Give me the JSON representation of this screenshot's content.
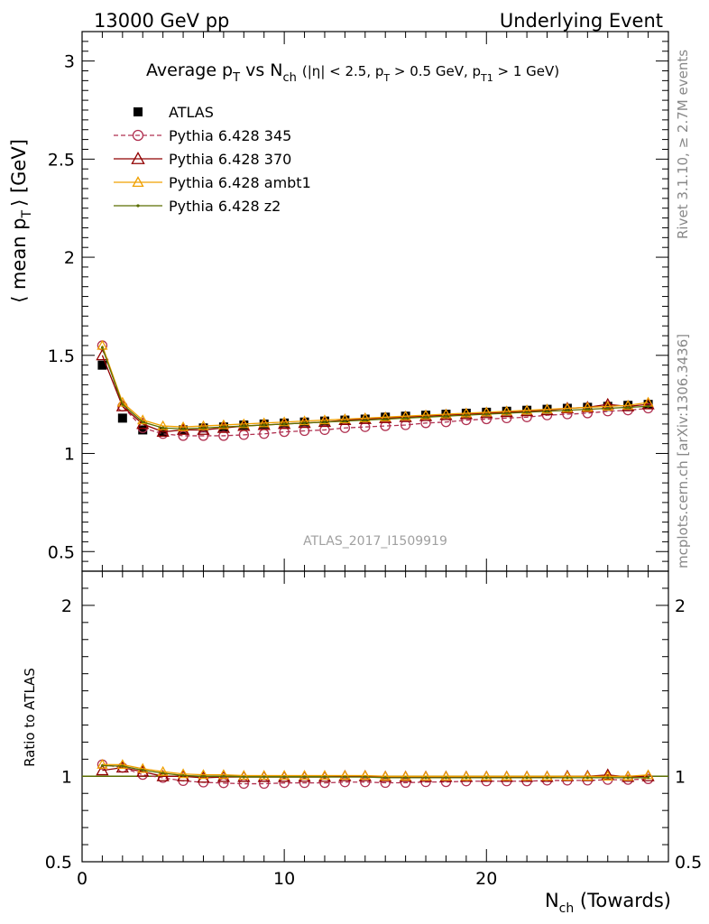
{
  "header": {
    "left": "13000 GeV pp",
    "right": "Underlying Event"
  },
  "side_labels": {
    "rivet": "Rivet 3.1.10, ≥ 2.7M events",
    "mcplots": "mcplots.cern.ch [arXiv:1306.3436]"
  },
  "colors": {
    "data": "#000000",
    "p345": "#b03050",
    "p370": "#900000",
    "ambt1": "#f0a000",
    "z2": "#5a6e00",
    "watermark": "#a0a0a0"
  },
  "chart_data": {
    "type": "scatter",
    "title_parts": {
      "main": "Average p",
      "sub1": "T",
      "mid": " vs N",
      "sub2": "ch",
      "cond": "(|η| < 2.5, p",
      "sub3": "T",
      "cond2": " > 0.5 GeV, p",
      "sub4": "T1",
      "cond3": " > 1 GeV)"
    },
    "ylabel_parts": {
      "pre": "⟨ mean p",
      "sub": "T",
      "post": "⟩ [GeV]"
    },
    "xlabel_parts": {
      "pre": "N",
      "sub": "ch",
      "post": " (Towards)"
    },
    "ratio_ylabel": "Ratio to ATLAS",
    "watermark": "ATLAS_2017_I1509919",
    "xlim": [
      0,
      29
    ],
    "ylim": [
      0.4,
      3.15
    ],
    "ratio_ylim": [
      0.5,
      2.2
    ],
    "x_ticks": [
      "0",
      "10",
      "20"
    ],
    "y_ticks": [
      "0.5",
      "1",
      "1.5",
      "2",
      "2.5",
      "3"
    ],
    "ratio_ticks": [
      "0.5",
      "1",
      "2"
    ],
    "x": [
      1,
      2,
      3,
      4,
      5,
      6,
      7,
      8,
      9,
      10,
      11,
      12,
      13,
      14,
      15,
      16,
      17,
      18,
      19,
      20,
      21,
      22,
      23,
      24,
      25,
      26,
      27,
      28
    ],
    "legend": [
      {
        "key": "data",
        "label": "ATLAS"
      },
      {
        "key": "p345",
        "label": "Pythia 6.428 345"
      },
      {
        "key": "p370",
        "label": "Pythia 6.428 370"
      },
      {
        "key": "ambt1",
        "label": "Pythia 6.428 ambt1"
      },
      {
        "key": "z2",
        "label": "Pythia 6.428 z2"
      }
    ],
    "series": [
      {
        "key": "data",
        "name": "ATLAS",
        "values": [
          1.45,
          1.18,
          1.12,
          1.11,
          1.12,
          1.13,
          1.135,
          1.145,
          1.15,
          1.155,
          1.16,
          1.165,
          1.17,
          1.175,
          1.185,
          1.19,
          1.195,
          1.2,
          1.205,
          1.21,
          1.215,
          1.22,
          1.225,
          1.23,
          1.235,
          1.24,
          1.245,
          1.25
        ]
      },
      {
        "key": "p345",
        "name": "Pythia 6.428 345",
        "values": [
          1.55,
          1.24,
          1.13,
          1.1,
          1.09,
          1.09,
          1.09,
          1.095,
          1.1,
          1.11,
          1.115,
          1.12,
          1.13,
          1.135,
          1.14,
          1.145,
          1.155,
          1.16,
          1.17,
          1.175,
          1.18,
          1.185,
          1.195,
          1.2,
          1.205,
          1.215,
          1.22,
          1.23
        ]
      },
      {
        "key": "p370",
        "name": "Pythia 6.428 370",
        "values": [
          1.5,
          1.24,
          1.15,
          1.11,
          1.12,
          1.12,
          1.13,
          1.14,
          1.145,
          1.15,
          1.155,
          1.16,
          1.17,
          1.175,
          1.18,
          1.185,
          1.19,
          1.195,
          1.2,
          1.205,
          1.21,
          1.215,
          1.22,
          1.23,
          1.235,
          1.25,
          1.24,
          1.25
        ]
      },
      {
        "key": "ambt1",
        "name": "Pythia 6.428 ambt1",
        "values": [
          1.55,
          1.26,
          1.17,
          1.14,
          1.135,
          1.14,
          1.145,
          1.15,
          1.155,
          1.16,
          1.165,
          1.17,
          1.175,
          1.18,
          1.185,
          1.19,
          1.195,
          1.2,
          1.205,
          1.21,
          1.215,
          1.22,
          1.225,
          1.23,
          1.235,
          1.24,
          1.245,
          1.26
        ]
      },
      {
        "key": "z2",
        "name": "Pythia 6.428 z2",
        "values": [
          1.54,
          1.25,
          1.16,
          1.13,
          1.125,
          1.13,
          1.135,
          1.14,
          1.145,
          1.15,
          1.155,
          1.16,
          1.165,
          1.17,
          1.175,
          1.18,
          1.185,
          1.19,
          1.195,
          1.2,
          1.205,
          1.21,
          1.215,
          1.22,
          1.225,
          1.23,
          1.235,
          1.24
        ]
      }
    ]
  }
}
